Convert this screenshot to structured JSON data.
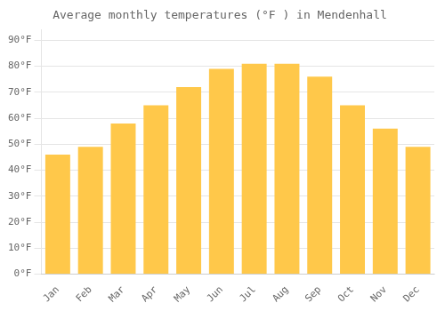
{
  "chart_data": {
    "type": "bar",
    "title": "Average monthly temperatures (°F ) in Mendenhall",
    "categories": [
      "Jan",
      "Feb",
      "Mar",
      "Apr",
      "May",
      "Jun",
      "Jul",
      "Aug",
      "Sep",
      "Oct",
      "Nov",
      "Dec"
    ],
    "values": [
      46,
      49,
      58,
      65,
      72,
      79,
      81,
      81,
      76,
      65,
      56,
      49
    ],
    "color": "#FFC84A",
    "ylim": [
      0,
      94
    ],
    "yticks": [
      {
        "value": 0,
        "label": "0°F"
      },
      {
        "value": 10,
        "label": "10°F"
      },
      {
        "value": 20,
        "label": "20°F"
      },
      {
        "value": 30,
        "label": "30°F"
      },
      {
        "value": 40,
        "label": "40°F"
      },
      {
        "value": 50,
        "label": "50°F"
      },
      {
        "value": 60,
        "label": "60°F"
      },
      {
        "value": 70,
        "label": "70°F"
      },
      {
        "value": 80,
        "label": "80°F"
      },
      {
        "value": 90,
        "label": "90°F"
      }
    ],
    "grid": true
  }
}
